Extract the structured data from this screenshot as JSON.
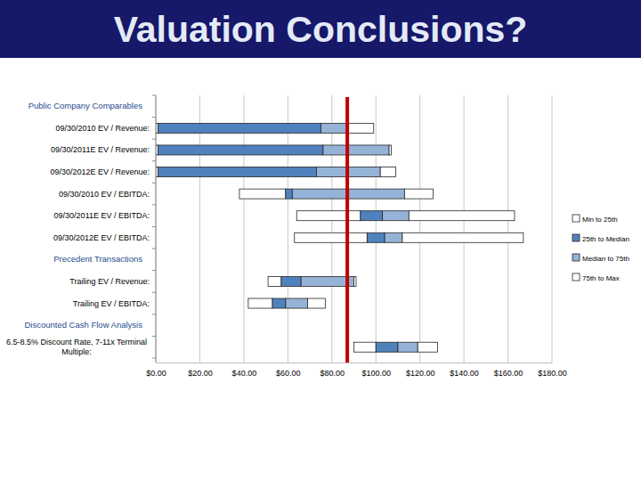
{
  "chart_data": {
    "type": "bar",
    "orientation": "horizontal",
    "title": "Valuation Conclusions?",
    "groups": [
      {
        "title": "Public Company Comparables",
        "categories": [
          "09/30/2010 EV / Revenue:",
          "09/30/2011E EV / Revenue:",
          "09/30/2012E EV / Revenue:",
          "09/30/2010 EV / EBITDA:",
          "09/30/2011E EV / EBITDA:",
          "09/30/2012E EV / EBITDA:"
        ]
      },
      {
        "title": "Precedent Transactions",
        "categories": [
          "Trailing EV / Revenue:",
          "Trailing EV / EBITDA:"
        ]
      },
      {
        "title": "Discounted Cash Flow Analysis",
        "categories": [
          "6.5-8.5% Discount Rate, 7-11x Terminal Multiple:"
        ]
      }
    ],
    "series": [
      {
        "name": "Min to 25th",
        "color": "#ffffff",
        "low": [
          0,
          0,
          0,
          38,
          64,
          63,
          51,
          42,
          90
        ],
        "high": [
          1,
          1,
          1,
          59,
          93,
          96,
          57,
          53,
          100
        ]
      },
      {
        "name": "25th to Median",
        "color": "#4f81bd",
        "low": [
          1,
          1,
          1,
          59,
          93,
          96,
          57,
          53,
          100
        ],
        "high": [
          75,
          76,
          73,
          62,
          103,
          104,
          66,
          59,
          110
        ]
      },
      {
        "name": "Median to 75th",
        "color": "#95b3d7",
        "low": [
          75,
          76,
          73,
          62,
          103,
          104,
          66,
          59,
          110
        ],
        "high": [
          87,
          106,
          102,
          113,
          115,
          112,
          90,
          69,
          119
        ]
      },
      {
        "name": "75th to Max",
        "color": "#ffffff",
        "low": [
          87,
          106,
          102,
          113,
          115,
          112,
          90,
          69,
          119
        ],
        "high": [
          99,
          107,
          109,
          126,
          163,
          167,
          91,
          77,
          128
        ]
      }
    ],
    "xlim": [
      0,
      180
    ],
    "xticks": [
      {
        "value": 0,
        "label": "$0.00"
      },
      {
        "value": 20,
        "label": "$20.00"
      },
      {
        "value": 40,
        "label": "$40.00"
      },
      {
        "value": 60,
        "label": "$60.00"
      },
      {
        "value": 80,
        "label": "$80.00"
      },
      {
        "value": 100,
        "label": "$100.00"
      },
      {
        "value": 120,
        "label": "$120.00"
      },
      {
        "value": 140,
        "label": "$140.00"
      },
      {
        "value": 160,
        "label": "$160.00"
      },
      {
        "value": 180,
        "label": "$180.00"
      }
    ],
    "grid": true,
    "legend": "right",
    "reference_line": {
      "value": 87,
      "color": "#c00000"
    }
  }
}
